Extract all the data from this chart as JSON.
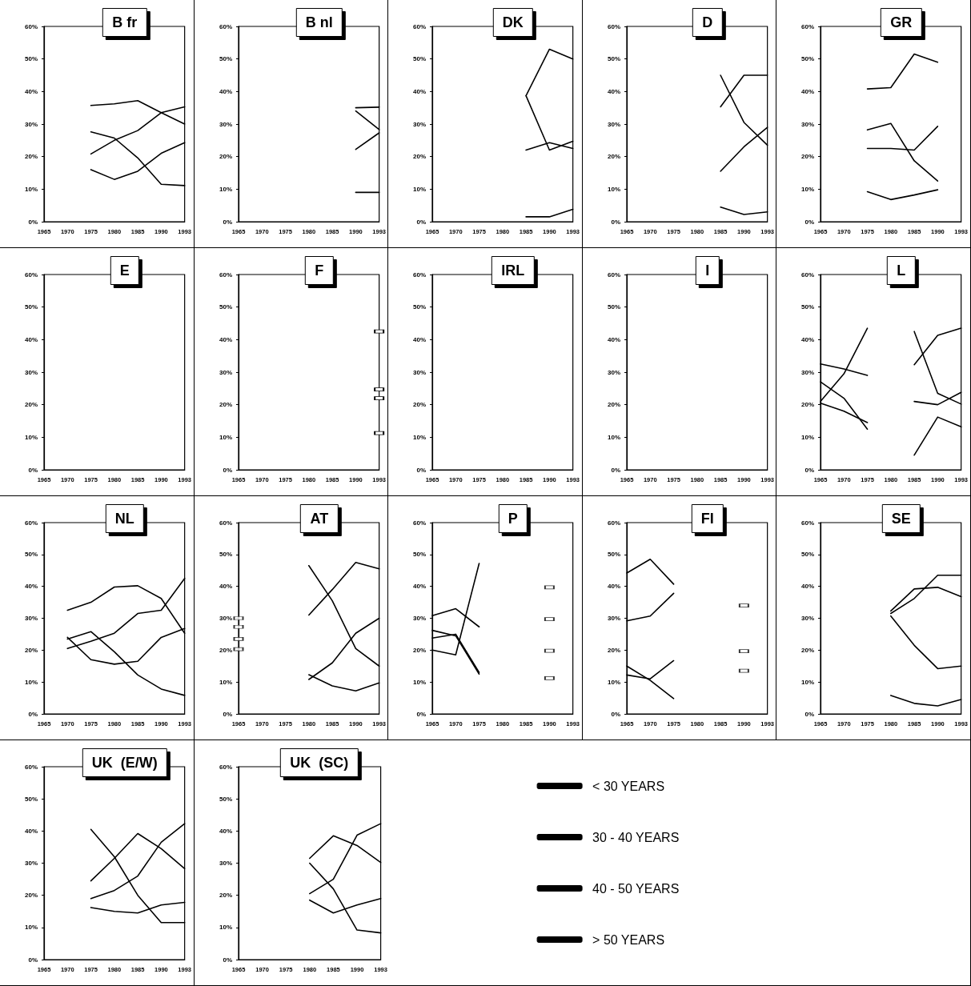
{
  "chart_data": [
    {
      "type": "line",
      "title": "B fr",
      "categories": [
        "1965",
        "1970",
        "1975",
        "1980",
        "1985",
        "1990",
        "1993"
      ],
      "ylim": [
        0,
        60
      ],
      "yticks": [
        {
          "value": 0,
          "label": "0%"
        },
        {
          "value": 10,
          "label": "10%"
        },
        {
          "value": 20,
          "label": "20%"
        },
        {
          "value": 30,
          "label": "30%"
        },
        {
          "value": 40,
          "label": "40%"
        },
        {
          "value": 50,
          "label": "50%"
        },
        {
          "value": 60,
          "label": "60%"
        }
      ],
      "series": [
        {
          "color": "#000000",
          "values": [
            null,
            null,
            16,
            13,
            15.5,
            21,
            24.3
          ]
        },
        {
          "color": "#000000",
          "values": [
            null,
            null,
            27.6,
            25.7,
            19.6,
            11.5,
            11.1
          ]
        },
        {
          "color": "#000000",
          "values": [
            null,
            null,
            20.8,
            25,
            28,
            33.5,
            35.3
          ]
        },
        {
          "color": "#000000",
          "values": [
            null,
            null,
            35.7,
            36.2,
            37.2,
            33.5,
            30
          ]
        }
      ]
    },
    {
      "type": "line",
      "title": "B nl",
      "categories": [
        "1965",
        "1970",
        "1975",
        "1980",
        "1985",
        "1990",
        "1993"
      ],
      "ylim": [
        0,
        60
      ],
      "yticks": [
        {
          "value": 0,
          "label": "0%"
        },
        {
          "value": 10,
          "label": "10%"
        },
        {
          "value": 20,
          "label": "20%"
        },
        {
          "value": 30,
          "label": "30%"
        },
        {
          "value": 40,
          "label": "40%"
        },
        {
          "value": 50,
          "label": "50%"
        },
        {
          "value": 60,
          "label": "60%"
        }
      ],
      "series": [
        {
          "color": "#000000",
          "values": [
            null,
            null,
            null,
            null,
            null,
            9,
            9
          ]
        },
        {
          "color": "#000000",
          "values": [
            null,
            null,
            null,
            null,
            null,
            22.2,
            27.3
          ]
        },
        {
          "color": "#000000",
          "values": [
            null,
            null,
            null,
            null,
            null,
            34,
            28.3
          ]
        },
        {
          "color": "#000000",
          "values": [
            null,
            null,
            null,
            null,
            null,
            35,
            35.2
          ]
        }
      ]
    },
    {
      "type": "line",
      "title": "DK",
      "categories": [
        "1965",
        "1970",
        "1975",
        "1980",
        "1985",
        "1990",
        "1993"
      ],
      "ylim": [
        0,
        60
      ],
      "yticks": [
        {
          "value": 0,
          "label": "0%"
        },
        {
          "value": 10,
          "label": "10%"
        },
        {
          "value": 20,
          "label": "20%"
        },
        {
          "value": 30,
          "label": "30%"
        },
        {
          "value": 40,
          "label": "40%"
        },
        {
          "value": 50,
          "label": "50%"
        },
        {
          "value": 60,
          "label": "60%"
        }
      ],
      "series": [
        {
          "color": "#000000",
          "values": [
            null,
            null,
            null,
            null,
            1.5,
            1.5,
            3.8
          ]
        },
        {
          "color": "#000000",
          "values": [
            null,
            null,
            null,
            null,
            22,
            24.3,
            22.5
          ]
        },
        {
          "color": "#000000",
          "values": [
            null,
            null,
            null,
            null,
            38.7,
            22,
            24.7
          ]
        },
        {
          "color": "#000000",
          "values": [
            null,
            null,
            null,
            null,
            38.7,
            53,
            50
          ]
        }
      ]
    },
    {
      "type": "line",
      "title": "D",
      "categories": [
        "1965",
        "1970",
        "1975",
        "1980",
        "1985",
        "1990",
        "1993"
      ],
      "ylim": [
        0,
        60
      ],
      "yticks": [
        {
          "value": 0,
          "label": "0%"
        },
        {
          "value": 10,
          "label": "10%"
        },
        {
          "value": 20,
          "label": "20%"
        },
        {
          "value": 30,
          "label": "30%"
        },
        {
          "value": 40,
          "label": "40%"
        },
        {
          "value": 50,
          "label": "50%"
        },
        {
          "value": 60,
          "label": "60%"
        }
      ],
      "series": [
        {
          "color": "#000000",
          "values": [
            null,
            null,
            null,
            null,
            4.5,
            2.2,
            3
          ]
        },
        {
          "color": "#000000",
          "values": [
            null,
            null,
            null,
            null,
            15.5,
            23,
            29
          ]
        },
        {
          "color": "#000000",
          "values": [
            null,
            null,
            null,
            null,
            35.3,
            45,
            45
          ]
        },
        {
          "color": "#000000",
          "values": [
            null,
            null,
            null,
            null,
            45,
            30.5,
            23.5
          ]
        }
      ]
    },
    {
      "type": "line",
      "title": "GR",
      "categories": [
        "1965",
        "1970",
        "1975",
        "1980",
        "1985",
        "1990",
        "1993"
      ],
      "ylim": [
        0,
        60
      ],
      "yticks": [
        {
          "value": 0,
          "label": "0%"
        },
        {
          "value": 10,
          "label": "10%"
        },
        {
          "value": 20,
          "label": "20%"
        },
        {
          "value": 30,
          "label": "30%"
        },
        {
          "value": 40,
          "label": "40%"
        },
        {
          "value": 50,
          "label": "50%"
        },
        {
          "value": 60,
          "label": "60%"
        }
      ],
      "series": [
        {
          "color": "#000000",
          "values": [
            null,
            null,
            9.2,
            6.8,
            8.2,
            9.8,
            null
          ]
        },
        {
          "color": "#000000",
          "values": [
            null,
            null,
            22.5,
            22.5,
            22,
            29.3,
            null
          ]
        },
        {
          "color": "#000000",
          "values": [
            null,
            null,
            28.2,
            30.2,
            18.7,
            12.5,
            null
          ]
        },
        {
          "color": "#000000",
          "values": [
            null,
            null,
            40.8,
            41.2,
            51.5,
            49,
            null
          ]
        }
      ]
    },
    {
      "type": "line",
      "title": "E",
      "categories": [
        "1965",
        "1970",
        "1975",
        "1980",
        "1985",
        "1990",
        "1993"
      ],
      "ylim": [
        0,
        60
      ],
      "yticks": [
        {
          "value": 0,
          "label": "0%"
        },
        {
          "value": 10,
          "label": "10%"
        },
        {
          "value": 20,
          "label": "20%"
        },
        {
          "value": 30,
          "label": "30%"
        },
        {
          "value": 40,
          "label": "40%"
        },
        {
          "value": 50,
          "label": "50%"
        },
        {
          "value": 60,
          "label": "60%"
        }
      ]
    },
    {
      "type": "line",
      "title": "F",
      "categories": [
        "1965",
        "1970",
        "1975",
        "1980",
        "1985",
        "1990",
        "1993"
      ],
      "ylim": [
        0,
        60
      ],
      "yticks": [
        {
          "value": 0,
          "label": "0%"
        },
        {
          "value": 10,
          "label": "10%"
        },
        {
          "value": 20,
          "label": "20%"
        },
        {
          "value": 30,
          "label": "30%"
        },
        {
          "value": 40,
          "label": "40%"
        },
        {
          "value": 50,
          "label": "50%"
        },
        {
          "value": 60,
          "label": "60%"
        }
      ],
      "series": [
        {
          "color": "#000000",
          "marker": "square",
          "values": [
            null,
            null,
            null,
            null,
            null,
            null,
            11.3
          ]
        },
        {
          "color": "#000000",
          "marker": "square",
          "values": [
            null,
            null,
            null,
            null,
            null,
            null,
            22
          ]
        },
        {
          "color": "#000000",
          "marker": "square",
          "values": [
            null,
            null,
            null,
            null,
            null,
            null,
            24.7
          ]
        },
        {
          "color": "#000000",
          "marker": "square",
          "values": [
            null,
            null,
            null,
            null,
            null,
            null,
            42.5
          ]
        }
      ]
    },
    {
      "type": "line",
      "title": "IRL",
      "categories": [
        "1965",
        "1970",
        "1975",
        "1980",
        "1985",
        "1990",
        "1993"
      ],
      "ylim": [
        0,
        60
      ],
      "yticks": [
        {
          "value": 0,
          "label": "0%"
        },
        {
          "value": 10,
          "label": "10%"
        },
        {
          "value": 20,
          "label": "20%"
        },
        {
          "value": 30,
          "label": "30%"
        },
        {
          "value": 40,
          "label": "40%"
        },
        {
          "value": 50,
          "label": "50%"
        },
        {
          "value": 60,
          "label": "60%"
        }
      ]
    },
    {
      "type": "line",
      "title": "I",
      "categories": [
        "1965",
        "1970",
        "1975",
        "1980",
        "1985",
        "1990",
        "1993"
      ],
      "ylim": [
        0,
        60
      ],
      "yticks": [
        {
          "value": 0,
          "label": "0%"
        },
        {
          "value": 10,
          "label": "10%"
        },
        {
          "value": 20,
          "label": "20%"
        },
        {
          "value": 30,
          "label": "30%"
        },
        {
          "value": 40,
          "label": "40%"
        },
        {
          "value": 50,
          "label": "50%"
        },
        {
          "value": 60,
          "label": "60%"
        }
      ]
    },
    {
      "type": "line",
      "title": "L",
      "categories": [
        "1965",
        "1970",
        "1975",
        "1980",
        "1985",
        "1990",
        "1993"
      ],
      "ylim": [
        0,
        60
      ],
      "yticks": [
        {
          "value": 0,
          "label": "0%"
        },
        {
          "value": 10,
          "label": "10%"
        },
        {
          "value": 20,
          "label": "20%"
        },
        {
          "value": 30,
          "label": "30%"
        },
        {
          "value": 40,
          "label": "40%"
        },
        {
          "value": 50,
          "label": "50%"
        },
        {
          "value": 60,
          "label": "60%"
        }
      ],
      "series": [
        {
          "color": "#000000",
          "values": [
            20.5,
            18,
            14.5,
            null,
            4.5,
            16.2,
            13.2
          ]
        },
        {
          "color": "#000000",
          "values": [
            27,
            22,
            12.5,
            null,
            21,
            20,
            23.8
          ]
        },
        {
          "color": "#000000",
          "values": [
            21,
            29.5,
            43.5,
            null,
            32.3,
            41.3,
            43.5
          ]
        },
        {
          "color": "#000000",
          "values": [
            32.5,
            31,
            29,
            null,
            42.5,
            23.5,
            20.2
          ]
        }
      ]
    },
    {
      "type": "line",
      "title": "NL",
      "categories": [
        "1965",
        "1970",
        "1975",
        "1980",
        "1985",
        "1990",
        "1993"
      ],
      "ylim": [
        0,
        60
      ],
      "yticks": [
        {
          "value": 0,
          "label": "0%"
        },
        {
          "value": 10,
          "label": "10%"
        },
        {
          "value": 20,
          "label": "20%"
        },
        {
          "value": 30,
          "label": "30%"
        },
        {
          "value": 40,
          "label": "40%"
        },
        {
          "value": 50,
          "label": "50%"
        },
        {
          "value": 60,
          "label": "60%"
        }
      ],
      "series": [
        {
          "color": "#000000",
          "values": [
            null,
            23.5,
            25.8,
            19.5,
            12.2,
            7.8,
            5.8
          ]
        },
        {
          "color": "#000000",
          "values": [
            null,
            24,
            17,
            15.6,
            16.5,
            24,
            26.8
          ]
        },
        {
          "color": "#000000",
          "values": [
            null,
            20.5,
            22.8,
            25.3,
            31.5,
            32.5,
            42.5
          ]
        },
        {
          "color": "#000000",
          "values": [
            null,
            32.5,
            35,
            39.8,
            40.2,
            36.2,
            25.3
          ]
        }
      ]
    },
    {
      "type": "line",
      "title": "AT",
      "categories": [
        "1965",
        "1970",
        "1975",
        "1980",
        "1985",
        "1990",
        "1993"
      ],
      "ylim": [
        0,
        60
      ],
      "yticks": [
        {
          "value": 0,
          "label": "0%"
        },
        {
          "value": 10,
          "label": "10%"
        },
        {
          "value": 20,
          "label": "20%"
        },
        {
          "value": 30,
          "label": "30%"
        },
        {
          "value": 40,
          "label": "40%"
        },
        {
          "value": 50,
          "label": "50%"
        },
        {
          "value": 60,
          "label": "60%"
        }
      ],
      "series": [
        {
          "color": "#000000",
          "values": [
            null,
            null,
            null,
            12.3,
            8.8,
            7.2,
            9.7
          ]
        },
        {
          "color": "#000000",
          "values": [
            null,
            null,
            null,
            10.8,
            16,
            25.3,
            30
          ]
        },
        {
          "color": "#000000",
          "values": [
            null,
            null,
            null,
            46.5,
            35.5,
            20.5,
            15
          ]
        },
        {
          "color": "#000000",
          "values": [
            null,
            null,
            null,
            31,
            39,
            47.5,
            45.5
          ]
        },
        {
          "type": "scatter",
          "color": "#000000",
          "marker": "square",
          "values": [
            20.3,
            null,
            null,
            null,
            null,
            null,
            null
          ]
        },
        {
          "type": "scatter",
          "color": "#000000",
          "marker": "square",
          "values": [
            23.5,
            null,
            null,
            null,
            null,
            null,
            null
          ]
        },
        {
          "type": "scatter",
          "color": "#000000",
          "marker": "square",
          "values": [
            27.3,
            null,
            null,
            null,
            null,
            null,
            null
          ]
        },
        {
          "type": "scatter",
          "color": "#000000",
          "marker": "square",
          "values": [
            30,
            null,
            null,
            null,
            null,
            null,
            null
          ]
        }
      ]
    },
    {
      "type": "line",
      "title": "P",
      "categories": [
        "1965",
        "1970",
        "1975",
        "1980",
        "1985",
        "1990",
        "1993"
      ],
      "ylim": [
        0,
        60
      ],
      "yticks": [
        {
          "value": 0,
          "label": "0%"
        },
        {
          "value": 10,
          "label": "10%"
        },
        {
          "value": 20,
          "label": "20%"
        },
        {
          "value": 30,
          "label": "30%"
        },
        {
          "value": 40,
          "label": "40%"
        },
        {
          "value": 50,
          "label": "50%"
        },
        {
          "value": 60,
          "label": "60%"
        }
      ],
      "series": [
        {
          "color": "#000000",
          "values": [
            26.2,
            24.5,
            12.5,
            null,
            null,
            null,
            null
          ]
        },
        {
          "color": "#000000",
          "values": [
            23.8,
            25,
            13,
            null,
            null,
            null,
            null
          ]
        },
        {
          "color": "#000000",
          "values": [
            20,
            18.5,
            47.2,
            null,
            null,
            null,
            null
          ]
        },
        {
          "color": "#000000",
          "values": [
            30.8,
            33,
            27.3,
            null,
            null,
            null,
            null
          ]
        },
        {
          "type": "scatter",
          "color": "#000000",
          "marker": "square",
          "values": [
            null,
            null,
            null,
            null,
            null,
            11.2,
            null
          ]
        },
        {
          "type": "scatter",
          "color": "#000000",
          "marker": "square",
          "values": [
            null,
            null,
            null,
            null,
            null,
            19.8,
            null
          ]
        },
        {
          "type": "scatter",
          "color": "#000000",
          "marker": "square",
          "values": [
            null,
            null,
            null,
            null,
            null,
            29.7,
            null
          ]
        },
        {
          "type": "scatter",
          "color": "#000000",
          "marker": "square",
          "values": [
            null,
            null,
            null,
            null,
            null,
            39.7,
            null
          ]
        }
      ]
    },
    {
      "type": "line",
      "title": "FI",
      "categories": [
        "1965",
        "1970",
        "1975",
        "1980",
        "1985",
        "1990",
        "1993"
      ],
      "ylim": [
        0,
        60
      ],
      "yticks": [
        {
          "value": 0,
          "label": "0%"
        },
        {
          "value": 10,
          "label": "10%"
        },
        {
          "value": 20,
          "label": "20%"
        },
        {
          "value": 30,
          "label": "30%"
        },
        {
          "value": 40,
          "label": "40%"
        },
        {
          "value": 50,
          "label": "50%"
        },
        {
          "value": 60,
          "label": "60%"
        }
      ],
      "series": [
        {
          "color": "#000000",
          "values": [
            15,
            10.5,
            4.8,
            null,
            null,
            null,
            null
          ]
        },
        {
          "color": "#000000",
          "values": [
            12.2,
            11,
            16.7,
            null,
            null,
            null,
            null
          ]
        },
        {
          "color": "#000000",
          "values": [
            29.2,
            30.7,
            37.8,
            null,
            null,
            null,
            null
          ]
        },
        {
          "color": "#000000",
          "values": [
            44.2,
            48.5,
            40.7,
            null,
            null,
            null,
            null
          ]
        },
        {
          "type": "scatter",
          "color": "#000000",
          "marker": "square",
          "values": [
            null,
            null,
            null,
            null,
            null,
            13.5,
            null
          ]
        },
        {
          "type": "scatter",
          "color": "#000000",
          "marker": "square",
          "values": [
            null,
            null,
            null,
            null,
            null,
            19.7,
            null
          ]
        },
        {
          "type": "scatter",
          "color": "#000000",
          "marker": "square",
          "values": [
            null,
            null,
            null,
            null,
            null,
            34,
            null
          ]
        }
      ]
    },
    {
      "type": "line",
      "title": "SE",
      "categories": [
        "1965",
        "1970",
        "1975",
        "1980",
        "1985",
        "1990",
        "1993"
      ],
      "ylim": [
        0,
        60
      ],
      "yticks": [
        {
          "value": 0,
          "label": "0%"
        },
        {
          "value": 10,
          "label": "10%"
        },
        {
          "value": 20,
          "label": "20%"
        },
        {
          "value": 30,
          "label": "30%"
        },
        {
          "value": 40,
          "label": "40%"
        },
        {
          "value": 50,
          "label": "50%"
        },
        {
          "value": 60,
          "label": "60%"
        }
      ],
      "series": [
        {
          "color": "#000000",
          "values": [
            null,
            null,
            null,
            5.8,
            3.3,
            2.5,
            4.5
          ]
        },
        {
          "color": "#000000",
          "values": [
            null,
            null,
            null,
            30.7,
            21.5,
            14.2,
            15
          ]
        },
        {
          "color": "#000000",
          "values": [
            null,
            null,
            null,
            31.5,
            36.2,
            43.5,
            43.5
          ]
        },
        {
          "color": "#000000",
          "values": [
            null,
            null,
            null,
            32.3,
            39.2,
            39.7,
            36.8
          ]
        }
      ]
    },
    {
      "type": "line",
      "title": "UK  (E/W)",
      "categories": [
        "1965",
        "1970",
        "1975",
        "1980",
        "1985",
        "1990",
        "1993"
      ],
      "ylim": [
        0,
        60
      ],
      "yticks": [
        {
          "value": 0,
          "label": "0%"
        },
        {
          "value": 10,
          "label": "10%"
        },
        {
          "value": 20,
          "label": "20%"
        },
        {
          "value": 30,
          "label": "30%"
        },
        {
          "value": 40,
          "label": "40%"
        },
        {
          "value": 50,
          "label": "50%"
        },
        {
          "value": 60,
          "label": "60%"
        }
      ],
      "series": [
        {
          "color": "#000000",
          "values": [
            null,
            null,
            16.2,
            15,
            14.5,
            17,
            17.8
          ]
        },
        {
          "color": "#000000",
          "values": [
            null,
            null,
            40.5,
            32,
            20,
            11.5,
            11.5
          ]
        },
        {
          "color": "#000000",
          "values": [
            null,
            null,
            19,
            21.5,
            26,
            36.5,
            42.3
          ]
        },
        {
          "color": "#000000",
          "values": [
            null,
            null,
            24.5,
            31.5,
            39.2,
            34.5,
            28.3
          ]
        }
      ]
    },
    {
      "type": "line",
      "title": "UK  (SC)",
      "legend": "right",
      "categories": [
        "1965",
        "1970",
        "1975",
        "1980",
        "1985",
        "1990",
        "1993"
      ],
      "ylim": [
        0,
        60
      ],
      "yticks": [
        {
          "value": 0,
          "label": "0%"
        },
        {
          "value": 10,
          "label": "10%"
        },
        {
          "value": 20,
          "label": "20%"
        },
        {
          "value": 30,
          "label": "30%"
        },
        {
          "value": 40,
          "label": "40%"
        },
        {
          "value": 50,
          "label": "50%"
        },
        {
          "value": 60,
          "label": "60%"
        }
      ],
      "series": [
        {
          "name": "< 30 YEARS",
          "color": "#000000",
          "values": [
            null,
            null,
            null,
            18.5,
            14.5,
            17,
            19
          ]
        },
        {
          "name": "30 - 40 YEARS",
          "color": "#000000",
          "values": [
            null,
            null,
            null,
            30,
            22,
            9.2,
            8.3
          ]
        },
        {
          "name": "40 - 50 YEARS",
          "color": "#000000",
          "values": [
            null,
            null,
            null,
            20.5,
            25,
            38.7,
            42.3
          ]
        },
        {
          "name": "> 50 YEARS",
          "color": "#000000",
          "values": [
            null,
            null,
            null,
            31.5,
            38.5,
            35.5,
            30.2
          ]
        }
      ]
    }
  ]
}
